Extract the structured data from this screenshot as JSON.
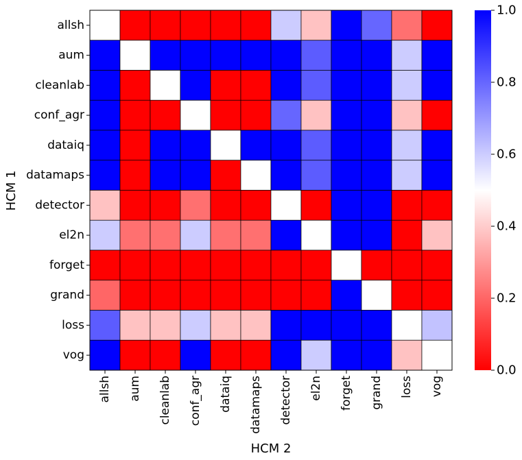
{
  "chart_data": {
    "type": "heatmap",
    "title": "",
    "xlabel": "HCM 2",
    "ylabel": "HCM 1",
    "row_labels": [
      "allsh",
      "aum",
      "cleanlab",
      "conf_agr",
      "dataiq",
      "datamaps",
      "detector",
      "el2n",
      "forget",
      "grand",
      "loss",
      "vog"
    ],
    "col_labels": [
      "allsh",
      "aum",
      "cleanlab",
      "conf_agr",
      "dataiq",
      "datamaps",
      "detector",
      "el2n",
      "forget",
      "grand",
      "loss",
      "vog"
    ],
    "values": [
      [
        0.5,
        0.0,
        0.0,
        0.0,
        0.0,
        0.0,
        0.6,
        0.38,
        1.0,
        0.8,
        0.22,
        0.0
      ],
      [
        1.0,
        0.5,
        1.0,
        1.0,
        1.0,
        1.0,
        1.0,
        0.82,
        1.0,
        1.0,
        0.6,
        1.0
      ],
      [
        1.0,
        0.0,
        0.5,
        1.0,
        0.0,
        0.0,
        1.0,
        0.82,
        1.0,
        1.0,
        0.6,
        1.0
      ],
      [
        1.0,
        0.0,
        0.0,
        0.5,
        0.0,
        0.0,
        0.8,
        0.38,
        1.0,
        1.0,
        0.38,
        0.0
      ],
      [
        1.0,
        0.0,
        1.0,
        1.0,
        0.5,
        1.0,
        1.0,
        0.82,
        1.0,
        1.0,
        0.6,
        1.0
      ],
      [
        1.0,
        0.0,
        1.0,
        1.0,
        0.0,
        0.5,
        1.0,
        0.82,
        1.0,
        1.0,
        0.6,
        1.0
      ],
      [
        0.38,
        0.0,
        0.0,
        0.22,
        0.0,
        0.0,
        0.5,
        0.0,
        1.0,
        1.0,
        0.0,
        0.0
      ],
      [
        0.6,
        0.22,
        0.22,
        0.6,
        0.22,
        0.22,
        1.0,
        0.5,
        1.0,
        1.0,
        0.0,
        0.38
      ],
      [
        0.0,
        0.0,
        0.0,
        0.0,
        0.0,
        0.0,
        0.0,
        0.0,
        0.5,
        0.0,
        0.0,
        0.0
      ],
      [
        0.2,
        0.0,
        0.0,
        0.0,
        0.0,
        0.0,
        0.0,
        0.0,
        1.0,
        0.5,
        0.0,
        0.0
      ],
      [
        0.82,
        0.38,
        0.38,
        0.6,
        0.38,
        0.38,
        1.0,
        1.0,
        1.0,
        1.0,
        0.5,
        0.62
      ],
      [
        1.0,
        0.0,
        0.0,
        1.0,
        0.0,
        0.0,
        1.0,
        0.6,
        1.0,
        1.0,
        0.38,
        0.5
      ]
    ],
    "colormap": {
      "name": "bwr_r",
      "low_color": "#ff0000",
      "mid_color": "#ffffff",
      "high_color": "#0000ff"
    },
    "vmin": 0.0,
    "vmax": 1.0,
    "colorbar": {
      "ticks": [
        0.0,
        0.2,
        0.4,
        0.6,
        0.8,
        1.0
      ],
      "tick_labels": [
        "0.0",
        "0.2",
        "0.4",
        "0.6",
        "0.8",
        "1.0"
      ]
    },
    "grid": true,
    "cell_border_color": "#000000"
  }
}
